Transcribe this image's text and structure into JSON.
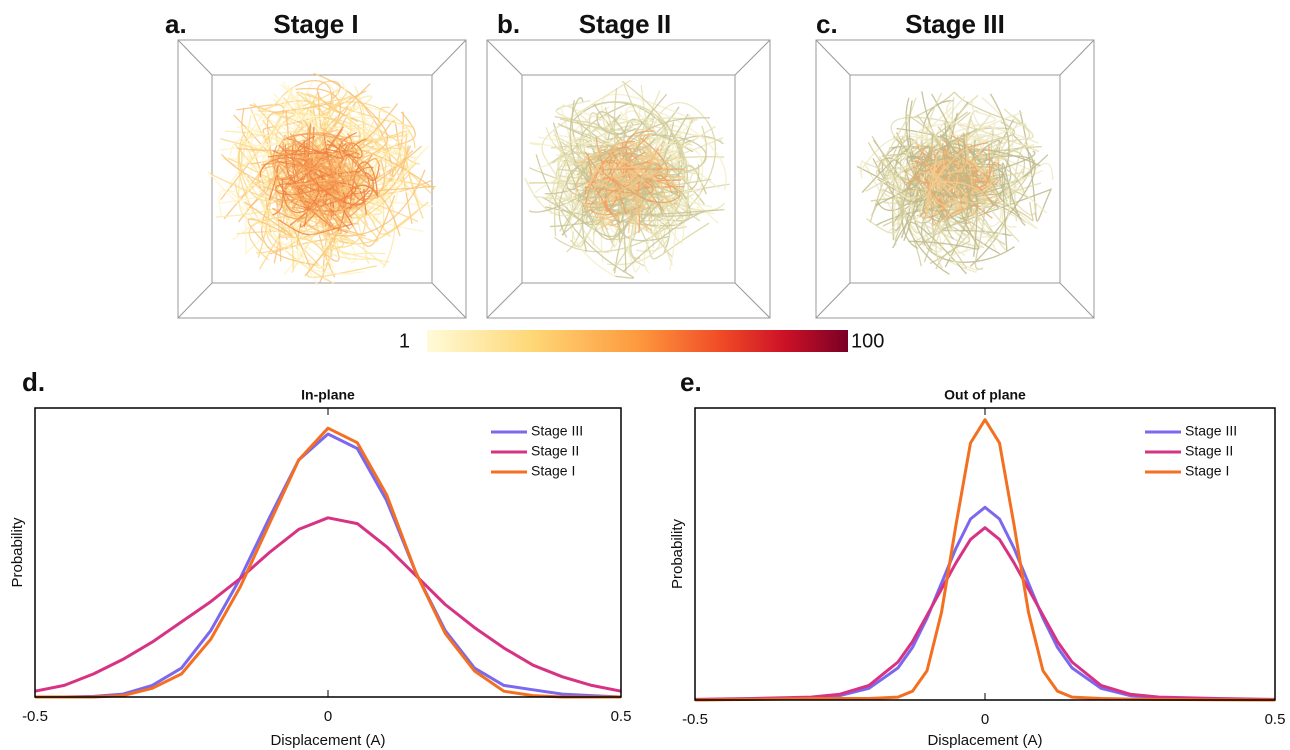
{
  "panels": [
    {
      "label": "a.",
      "title": "Stage I"
    },
    {
      "label": "b.",
      "title": "Stage II"
    },
    {
      "label": "c.",
      "title": "Stage III"
    }
  ],
  "colorbar": {
    "min": 1,
    "max": 100
  },
  "chart_data": [
    {
      "type": "line",
      "panel_label": "d.",
      "title": "In-plane",
      "xlabel": "Displacement (A)",
      "ylabel": "Probability",
      "x": [
        -0.5,
        -0.45,
        -0.4,
        -0.35,
        -0.3,
        -0.25,
        -0.2,
        -0.15,
        -0.1,
        -0.05,
        0,
        0.05,
        0.1,
        0.15,
        0.2,
        0.25,
        0.3,
        0.35,
        0.4,
        0.45,
        0.5
      ],
      "xlim": [
        -0.5,
        0.5
      ],
      "xticks": [
        -0.5,
        0,
        0.5
      ],
      "ylim": [
        0,
        1
      ],
      "legend": "upper right",
      "series": [
        {
          "name": "Stage III",
          "color": "#7b68ee",
          "values": [
            0,
            0,
            0.002,
            0.01,
            0.04,
            0.1,
            0.23,
            0.41,
            0.62,
            0.82,
            0.91,
            0.86,
            0.68,
            0.43,
            0.23,
            0.1,
            0.04,
            0.025,
            0.01,
            0.005,
            0
          ]
        },
        {
          "name": "Stage II",
          "color": "#d63384",
          "values": [
            0.02,
            0.04,
            0.08,
            0.13,
            0.19,
            0.26,
            0.33,
            0.41,
            0.5,
            0.58,
            0.62,
            0.6,
            0.52,
            0.42,
            0.32,
            0.24,
            0.17,
            0.11,
            0.07,
            0.04,
            0.02
          ]
        },
        {
          "name": "Stage I",
          "color": "#f36f21",
          "values": [
            0,
            0,
            0,
            0.005,
            0.03,
            0.08,
            0.2,
            0.38,
            0.6,
            0.82,
            0.93,
            0.88,
            0.7,
            0.43,
            0.22,
            0.09,
            0.02,
            0.005,
            0,
            0,
            0
          ]
        }
      ]
    },
    {
      "type": "line",
      "panel_label": "e.",
      "title": "Out of plane",
      "xlabel": "Displacement (A)",
      "ylabel": "Probability",
      "x": [
        -0.5,
        -0.4,
        -0.3,
        -0.25,
        -0.2,
        -0.15,
        -0.125,
        -0.1,
        -0.075,
        -0.05,
        -0.025,
        0,
        0.025,
        0.05,
        0.075,
        0.1,
        0.125,
        0.15,
        0.2,
        0.25,
        0.3,
        0.4,
        0.5
      ],
      "xlim": [
        -0.5,
        0.5
      ],
      "xticks": [
        -0.5,
        0,
        0.5
      ],
      "ylim": [
        0,
        1
      ],
      "legend": "upper right",
      "series": [
        {
          "name": "Stage III",
          "color": "#7b68ee",
          "values": [
            0.001,
            0.003,
            0.008,
            0.015,
            0.04,
            0.11,
            0.18,
            0.28,
            0.4,
            0.52,
            0.62,
            0.66,
            0.62,
            0.52,
            0.4,
            0.28,
            0.18,
            0.11,
            0.04,
            0.015,
            0.008,
            0.003,
            0.001
          ]
        },
        {
          "name": "Stage II",
          "color": "#d63384",
          "values": [
            0.002,
            0.005,
            0.01,
            0.02,
            0.05,
            0.13,
            0.2,
            0.29,
            0.38,
            0.47,
            0.55,
            0.59,
            0.55,
            0.47,
            0.38,
            0.29,
            0.2,
            0.13,
            0.05,
            0.02,
            0.01,
            0.005,
            0.002
          ]
        },
        {
          "name": "Stage I",
          "color": "#f36f21",
          "values": [
            0,
            0.002,
            0.005,
            0.005,
            0.005,
            0.01,
            0.03,
            0.1,
            0.3,
            0.6,
            0.88,
            0.96,
            0.88,
            0.6,
            0.3,
            0.1,
            0.03,
            0.01,
            0.005,
            0.003,
            0.002,
            0.001,
            0
          ]
        }
      ]
    }
  ]
}
